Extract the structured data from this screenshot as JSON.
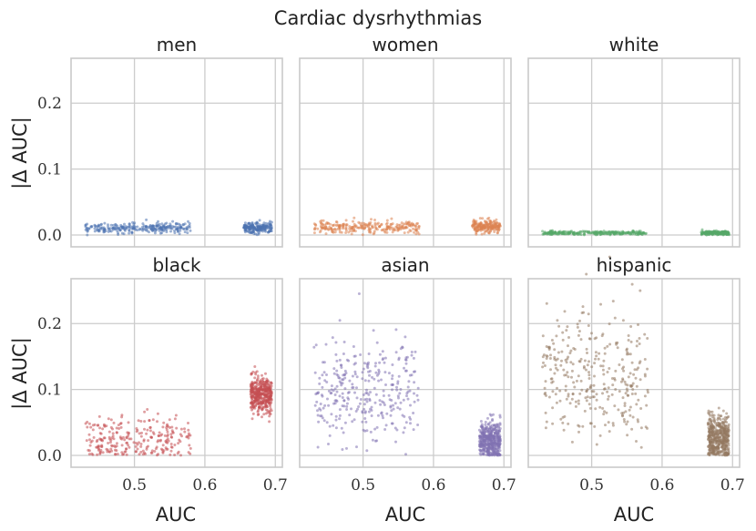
{
  "chart_data": {
    "type": "scatter",
    "title": "Cardiac dysrhythmias",
    "xlabel": "AUC",
    "ylabel": "|Δ AUC|",
    "xlim": [
      0.41,
      0.71
    ],
    "ylim": [
      -0.018,
      0.268
    ],
    "xticks": [
      0.5,
      0.6,
      0.7
    ],
    "yticks": [
      0.0,
      0.1,
      0.2
    ],
    "xtick_labels": [
      "0.5",
      "0.6",
      "0.7"
    ],
    "ytick_labels": [
      "0.0",
      "0.1",
      "0.2"
    ],
    "grid": true,
    "sharex": true,
    "sharey": true,
    "panels": [
      {
        "title": "men",
        "color": "#4c72b0",
        "clusters": [
          {
            "x_range": [
              0.43,
              0.58
            ],
            "y_center": 0.011,
            "y_spread": 0.004,
            "count": 260
          },
          {
            "x_range": [
              0.655,
              0.695
            ],
            "y_center": 0.011,
            "y_spread": 0.004,
            "count": 200
          }
        ]
      },
      {
        "title": "women",
        "color": "#dd8452",
        "clusters": [
          {
            "x_range": [
              0.43,
              0.58
            ],
            "y_center": 0.012,
            "y_spread": 0.005,
            "count": 260
          },
          {
            "x_range": [
              0.655,
              0.695
            ],
            "y_center": 0.013,
            "y_spread": 0.004,
            "count": 200
          }
        ]
      },
      {
        "title": "white",
        "color": "#55a868",
        "clusters": [
          {
            "x_range": [
              0.43,
              0.58
            ],
            "y_center": 0.003,
            "y_spread": 0.0015,
            "count": 260
          },
          {
            "x_range": [
              0.655,
              0.695
            ],
            "y_center": 0.003,
            "y_spread": 0.0015,
            "count": 200
          }
        ]
      },
      {
        "title": "black",
        "color": "#c44e52",
        "clusters": [
          {
            "x_range": [
              0.43,
              0.58
            ],
            "y_center": 0.025,
            "y_spread": 0.018,
            "count": 260
          },
          {
            "x_range": [
              0.665,
              0.695
            ],
            "y_center": 0.093,
            "y_spread": 0.013,
            "count": 400
          }
        ]
      },
      {
        "title": "asian",
        "color": "#8172b3",
        "clusters": [
          {
            "x_range": [
              0.43,
              0.58
            ],
            "y_center": 0.095,
            "y_spread": 0.04,
            "count": 320
          },
          {
            "x_range": [
              0.665,
              0.695
            ],
            "y_center": 0.022,
            "y_spread": 0.014,
            "count": 450
          }
        ]
      },
      {
        "title": "hispanic",
        "color": "#937860",
        "clusters": [
          {
            "x_range": [
              0.43,
              0.58
            ],
            "y_center": 0.12,
            "y_spread": 0.05,
            "count": 320
          },
          {
            "x_range": [
              0.665,
              0.695
            ],
            "y_center": 0.025,
            "y_spread": 0.018,
            "count": 450
          }
        ]
      }
    ]
  }
}
